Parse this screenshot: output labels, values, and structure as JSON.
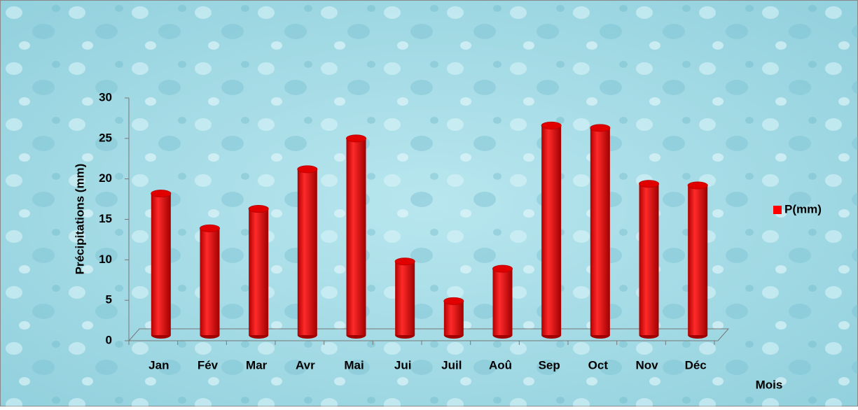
{
  "chart_data": {
    "type": "bar",
    "style": "3d-cylinder",
    "categories": [
      "Jan",
      "Fév",
      "Mar",
      "Avr",
      "Mai",
      "Jui",
      "Juil",
      "Aoû",
      "Sep",
      "Oct",
      "Nov",
      "Déc"
    ],
    "series": [
      {
        "name": "P(mm)",
        "color": "#ff0000",
        "values": [
          17.5,
          13.2,
          15.6,
          20.5,
          24.3,
          9.1,
          4.2,
          8.2,
          25.9,
          25.6,
          18.7,
          18.5
        ]
      }
    ],
    "x_label": "Mois",
    "y_label": "Précipitations (mm)",
    "ylim": [
      0,
      30
    ],
    "yticks": [
      0,
      5,
      10,
      15,
      20,
      25,
      30
    ],
    "legend": "right"
  }
}
